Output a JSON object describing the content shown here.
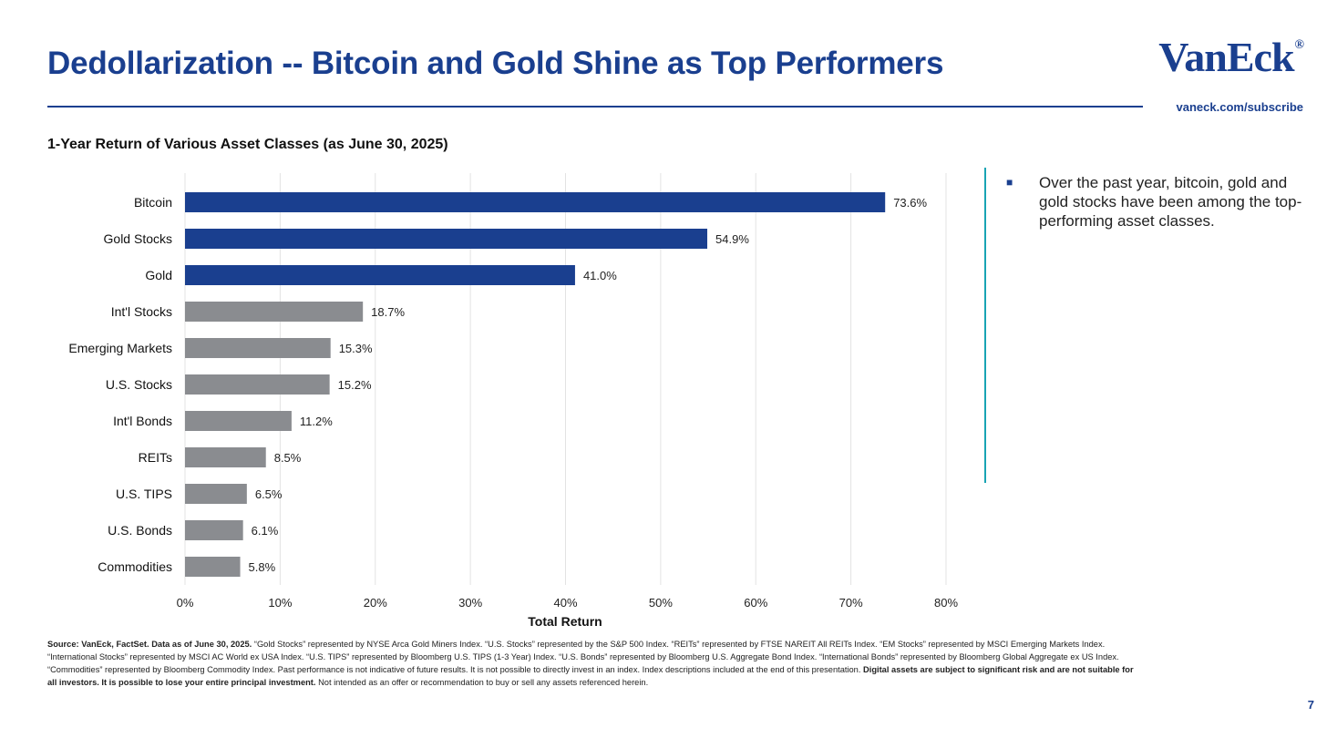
{
  "header": {
    "title": "Dedollarization -- Bitcoin and Gold Shine as Top Performers",
    "logo": "VanEck",
    "logo_reg": "®",
    "subscribe_link": "vaneck.com/subscribe"
  },
  "colors": {
    "highlight_bar": "#1a3f8f",
    "other_bar": "#8a8c90",
    "accent_line": "#19a4b4"
  },
  "bullet": {
    "text": "Over the past year, bitcoin, gold and gold stocks have been among the top-performing asset classes."
  },
  "chart_data": {
    "type": "bar",
    "orientation": "horizontal",
    "title": "1-Year Return of Various Asset Classes (as June 30, 2025)",
    "xlabel": "Total Return",
    "ylabel": "",
    "xlim": [
      0,
      80
    ],
    "x_ticks": [
      "0%",
      "10%",
      "20%",
      "30%",
      "40%",
      "50%",
      "60%",
      "70%",
      "80%"
    ],
    "grid": "vertical",
    "categories": [
      "Bitcoin",
      "Gold Stocks",
      "Gold",
      "Int'l Stocks",
      "Emerging Markets",
      "U.S. Stocks",
      "Int'l Bonds",
      "REITs",
      "U.S. TIPS",
      "U.S. Bonds",
      "Commodities"
    ],
    "values": [
      73.6,
      54.9,
      41.0,
      18.7,
      15.3,
      15.2,
      11.2,
      8.5,
      6.5,
      6.1,
      5.8
    ],
    "value_labels": [
      "73.6%",
      "54.9%",
      "41.0%",
      "18.7%",
      "15.3%",
      "15.2%",
      "11.2%",
      "8.5%",
      "6.5%",
      "6.1%",
      "5.8%"
    ],
    "highlighted": [
      true,
      true,
      true,
      false,
      false,
      false,
      false,
      false,
      false,
      false,
      false
    ]
  },
  "footer": {
    "source_bold": "Source: VanEck, FactSet. Data as of June 30, 2025.",
    "source_text": " “Gold Stocks” represented by NYSE Arca Gold Miners Index. “U.S. Stocks” represented by the S&P 500 Index. “REITs” represented by FTSE NAREIT All REITs Index. “EM Stocks” represented by MSCI Emerging Markets Index. “International Stocks” represented by MSCI AC World ex USA Index. “U.S. TIPS” represented by Bloomberg U.S. TIPS (1-3 Year) Index. “U.S. Bonds” represented by Bloomberg U.S. Aggregate Bond Index. “International Bonds” represented by Bloomberg Global Aggregate ex US Index. “Commodities” represented by Bloomberg Commodity Index. Past performance is not indicative of future results. It is not possible to directly invest in an index. Index descriptions included at the end of this presentation. ",
    "warning_bold": "Digital assets are subject to significant risk and are not suitable for all investors. It is possible to lose your entire principal investment.",
    "closing_text": " Not intended as an offer or recommendation to buy or sell any assets referenced herein.",
    "page_number": "7"
  }
}
